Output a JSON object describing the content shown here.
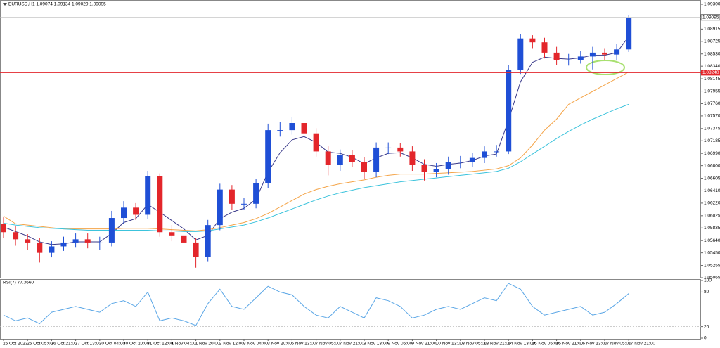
{
  "chart_data": [
    {
      "type": "candlestick",
      "title": "EURUSD,H1 1.09074 1.09134 1.09029 1.09095",
      "up_color": "#1f4fd6",
      "down_color": "#e3262b",
      "open": [
        1.059,
        1.0577,
        1.0566,
        1.0561,
        1.0545,
        1.0555,
        1.0561,
        1.0566,
        1.0561,
        1.0561,
        1.0599,
        1.0615,
        1.0604,
        1.0664,
        1.0577,
        1.0572,
        1.0561,
        1.0539,
        1.0588,
        1.0643,
        1.0621,
        1.0621,
        1.0653,
        1.0735,
        1.0735,
        1.0746,
        1.073,
        1.0702,
        1.0681,
        1.0697,
        1.0686,
        1.067,
        1.0708,
        1.0708,
        1.0702,
        1.0681,
        1.067,
        1.0675,
        1.0686,
        1.0686,
        1.0692,
        1.0702,
        1.0702,
        1.0828,
        1.0877,
        1.0871,
        1.0855,
        1.0844,
        1.0844,
        1.0849,
        1.0855,
        1.0852,
        1.086
      ],
      "high": [
        1.06,
        1.0587,
        1.0574,
        1.0568,
        1.0563,
        1.057,
        1.0575,
        1.0575,
        1.057,
        1.061,
        1.0625,
        1.0622,
        1.0672,
        1.0668,
        1.0588,
        1.058,
        1.0568,
        1.0596,
        1.0652,
        1.065,
        1.063,
        1.066,
        1.0745,
        1.0748,
        1.0755,
        1.0756,
        1.0738,
        1.071,
        1.0705,
        1.0704,
        1.0693,
        1.0716,
        1.0716,
        1.0715,
        1.071,
        1.069,
        1.0684,
        1.0694,
        1.0695,
        1.07,
        1.071,
        1.0712,
        1.0836,
        1.0884,
        1.0882,
        1.0878,
        1.0864,
        1.0853,
        1.0858,
        1.0864,
        1.0862,
        1.0868,
        1.09134
      ],
      "low": [
        1.0568,
        1.0556,
        1.055,
        1.053,
        1.0538,
        1.0548,
        1.0553,
        1.0552,
        1.055,
        1.0555,
        1.059,
        1.0596,
        1.0598,
        1.057,
        1.0563,
        1.0552,
        1.0522,
        1.0532,
        1.058,
        1.0612,
        1.0612,
        1.0614,
        1.0645,
        1.0725,
        1.0728,
        1.0722,
        1.0694,
        1.0665,
        1.0672,
        1.0678,
        1.066,
        1.0662,
        1.0698,
        1.0694,
        1.0672,
        1.0657,
        1.0662,
        1.0666,
        1.0676,
        1.0678,
        1.0684,
        1.0694,
        1.0698,
        1.0822,
        1.0862,
        1.0846,
        1.0836,
        1.0835,
        1.0838,
        1.0829,
        1.0843,
        1.0844,
        1.0856
      ],
      "close": [
        1.0577,
        1.0566,
        1.0561,
        1.0545,
        1.0555,
        1.0561,
        1.0566,
        1.0561,
        1.0561,
        1.0599,
        1.0615,
        1.0604,
        1.0664,
        1.0577,
        1.0572,
        1.0561,
        1.0539,
        1.0588,
        1.0643,
        1.0621,
        1.0621,
        1.0653,
        1.0735,
        1.0735,
        1.0746,
        1.073,
        1.0702,
        1.0681,
        1.0697,
        1.0686,
        1.067,
        1.0708,
        1.0708,
        1.0702,
        1.0681,
        1.067,
        1.0675,
        1.0686,
        1.0686,
        1.0692,
        1.0702,
        1.0702,
        1.0828,
        1.0877,
        1.0871,
        1.0855,
        1.0844,
        1.0844,
        1.0849,
        1.0855,
        1.0852,
        1.086,
        1.09095
      ],
      "series": [
        {
          "color": "#3a3a8a",
          "values": [
            1.0585,
            1.0578,
            1.0571,
            1.0562,
            1.0558,
            1.0559,
            1.0562,
            1.0562,
            1.0562,
            1.0575,
            1.0592,
            1.0598,
            1.062,
            1.0608,
            1.0595,
            1.0582,
            1.0565,
            1.0572,
            1.0598,
            1.0608,
            1.0614,
            1.0628,
            1.067,
            1.07,
            1.072,
            1.0725,
            1.0716,
            1.0701,
            1.0699,
            1.0693,
            1.0683,
            1.0692,
            1.0699,
            1.07,
            1.0692,
            1.0682,
            1.0679,
            1.0682,
            1.0684,
            1.0688,
            1.0695,
            1.0698,
            1.075,
            1.081,
            1.084,
            1.0848,
            1.0846,
            1.0845,
            1.0847,
            1.0851,
            1.0851,
            1.0855,
            1.088
          ]
        },
        {
          "color": "#f4a448",
          "values": [
            1.0602,
            1.059,
            1.0588,
            1.0586,
            1.0584,
            1.0582,
            1.0582,
            1.0582,
            1.0582,
            1.0582,
            1.0583,
            1.0583,
            1.0583,
            1.0582,
            1.0581,
            1.058,
            1.0579,
            1.0581,
            1.0584,
            1.0588,
            1.0592,
            1.0598,
            1.0606,
            1.0616,
            1.0626,
            1.0636,
            1.0643,
            1.0648,
            1.0652,
            1.0655,
            1.0658,
            1.0662,
            1.0665,
            1.0667,
            1.0667,
            1.0667,
            1.0668,
            1.0669,
            1.067,
            1.0671,
            1.0673,
            1.0675,
            1.068,
            1.0692,
            1.0712,
            1.0735,
            1.0752,
            1.0775,
            1.0785,
            1.0795,
            1.0805,
            1.0815,
            1.0825
          ]
        },
        {
          "color": "#3cc3dc",
          "values": [
            1.0591,
            1.0588,
            1.0586,
            1.0584,
            1.0583,
            1.0582,
            1.0581,
            1.058,
            1.058,
            1.058,
            1.058,
            1.058,
            1.058,
            1.0579,
            1.0579,
            1.0578,
            1.0578,
            1.0579,
            1.0582,
            1.0585,
            1.0588,
            1.0593,
            1.0599,
            1.0606,
            1.0613,
            1.062,
            1.0627,
            1.0633,
            1.0638,
            1.0642,
            1.0646,
            1.0649,
            1.0652,
            1.0655,
            1.0657,
            1.0659,
            1.0661,
            1.0663,
            1.0665,
            1.0667,
            1.0669,
            1.0671,
            1.0676,
            1.0686,
            1.0698,
            1.071,
            1.0722,
            1.0733,
            1.0743,
            1.0752,
            1.076,
            1.0768,
            1.0775
          ]
        }
      ],
      "current_price": {
        "value": 1.09095,
        "label": "1.09095"
      },
      "hline": {
        "value": 1.0824,
        "label": "1.08240",
        "color": "#e3262b"
      },
      "ylim": [
        1.05065,
        1.093
      ],
      "yticks": [
        {
          "value": 1.093,
          "label": "1.09300"
        },
        {
          "value": 1.09105,
          "label": "1.09105"
        },
        {
          "value": 1.08915,
          "label": "1.08915"
        },
        {
          "value": 1.08725,
          "label": "1.08725"
        },
        {
          "value": 1.0853,
          "label": "1.08530"
        },
        {
          "value": 1.0834,
          "label": "1.08340"
        },
        {
          "value": 1.08145,
          "label": "1.08145"
        },
        {
          "value": 1.07955,
          "label": "1.07955"
        },
        {
          "value": 1.0776,
          "label": "1.07760"
        },
        {
          "value": 1.0757,
          "label": "1.07570"
        },
        {
          "value": 1.07375,
          "label": "1.07375"
        },
        {
          "value": 1.07185,
          "label": "1.07185"
        },
        {
          "value": 1.0699,
          "label": "1.06990"
        },
        {
          "value": 1.068,
          "label": "1.06800"
        },
        {
          "value": 1.06605,
          "label": "1.06605"
        },
        {
          "value": 1.0641,
          "label": "1.06410"
        },
        {
          "value": 1.0622,
          "label": "1.06220"
        },
        {
          "value": 1.06025,
          "label": "1.06025"
        },
        {
          "value": 1.05835,
          "label": "1.05835"
        },
        {
          "value": 1.0564,
          "label": "1.05640"
        },
        {
          "value": 1.0545,
          "label": "1.05450"
        },
        {
          "value": 1.05255,
          "label": "1.05255"
        },
        {
          "value": 1.05065,
          "label": "1.05065"
        }
      ],
      "x_labels": [
        "25 Oct 2023",
        "26 Oct 05:00",
        "26 Oct 21:00",
        "27 Oct 13:00",
        "30 Oct 04:00",
        "30 Oct 20:00",
        "31 Oct 12:00",
        "1 Nov 04:00",
        "1 Nov 20:00",
        "2 Nov 12:00",
        "3 Nov 04:00",
        "3 Nov 20:00",
        "6 Nov 13:00",
        "7 Nov 05:00",
        "7 Nov 21:00",
        "8 Nov 13:00",
        "9 Nov 05:00",
        "9 Nov 21:00",
        "10 Nov 13:00",
        "13 Nov 05:00",
        "13 Nov 21:00",
        "14 Nov 13:00",
        "15 Nov 05:00",
        "15 Nov 21:00",
        "16 Nov 13:00",
        "17 Nov 05:00",
        "17 Nov 21:00"
      ]
    },
    {
      "type": "line",
      "title": "RSI(7) 77.3660",
      "color": "#5aa6e6",
      "values": [
        40,
        30,
        35,
        25,
        45,
        50,
        55,
        50,
        45,
        60,
        65,
        55,
        80,
        30,
        35,
        30,
        22,
        60,
        85,
        55,
        50,
        70,
        90,
        80,
        75,
        55,
        40,
        35,
        55,
        45,
        35,
        70,
        65,
        55,
        35,
        40,
        50,
        55,
        50,
        60,
        70,
        65,
        95,
        85,
        55,
        40,
        45,
        50,
        55,
        40,
        45,
        60,
        77.366
      ],
      "ylim": [
        0,
        100
      ],
      "yticks": [
        0,
        20,
        80,
        100
      ],
      "levels": [
        20,
        80
      ]
    }
  ]
}
